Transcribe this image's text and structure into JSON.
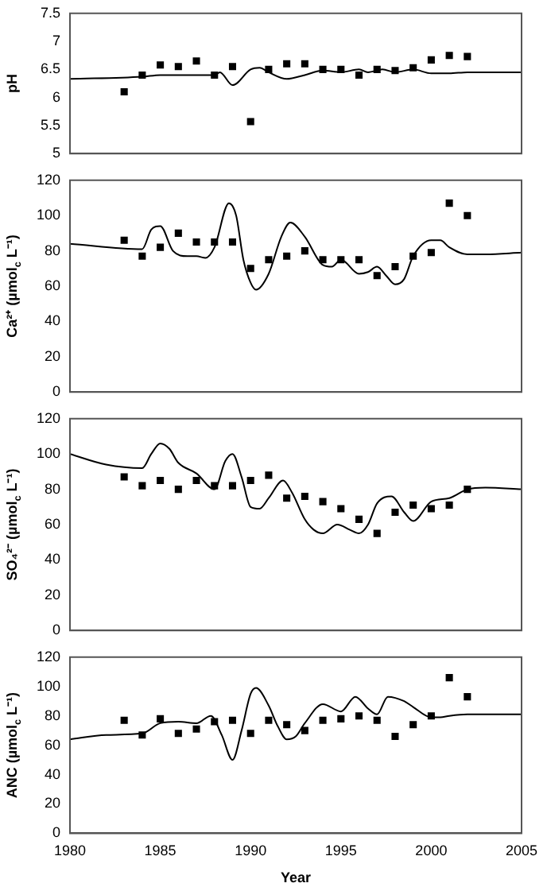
{
  "chart_data": [
    {
      "type": "scatter",
      "ylabel": "pH",
      "xlim": [
        1980,
        2005
      ],
      "xticks": [
        1980,
        1985,
        1990,
        1995,
        2000,
        2005
      ],
      "ylim": [
        5,
        7.5
      ],
      "yticks": [
        5,
        5.5,
        6,
        6.5,
        7,
        7.5
      ],
      "tick_labels": "y",
      "grid": false,
      "legend": false,
      "series": [
        {
          "type": "scatter",
          "marker": "square",
          "color": "#000000",
          "x": [
            1983,
            1984,
            1985,
            1986,
            1987,
            1988,
            1989,
            1990,
            1991,
            1992,
            1993,
            1994,
            1995,
            1996,
            1997,
            1998,
            1999,
            2000,
            2001,
            2002
          ],
          "values": [
            6.1,
            6.4,
            6.58,
            6.55,
            6.65,
            6.4,
            6.55,
            5.57,
            6.5,
            6.6,
            6.6,
            6.5,
            6.5,
            6.4,
            6.5,
            6.48,
            6.53,
            6.67,
            6.75,
            6.73
          ]
        },
        {
          "type": "line",
          "color": "#000000",
          "x": [
            1980,
            1984,
            1985,
            1988,
            1988.3,
            1989,
            1990,
            1990.5,
            1991,
            1992,
            1993,
            1994,
            1995,
            1996,
            1996.5,
            1997.3,
            1998,
            1999,
            2000,
            2001,
            2002,
            2005
          ],
          "values": [
            6.33,
            6.37,
            6.4,
            6.4,
            6.45,
            6.22,
            6.5,
            6.53,
            6.45,
            6.33,
            6.4,
            6.48,
            6.45,
            6.5,
            6.45,
            6.5,
            6.45,
            6.5,
            6.43,
            6.43,
            6.45,
            6.45
          ]
        }
      ]
    },
    {
      "type": "scatter",
      "ylabel": "Ca²⁺ (µmol$_{c}$ L⁻¹)",
      "xlim": [
        1980,
        2005
      ],
      "xticks": [
        1980,
        1985,
        1990,
        1995,
        2000,
        2005
      ],
      "ylim": [
        0,
        120
      ],
      "yticks": [
        0,
        20,
        40,
        60,
        80,
        100,
        120
      ],
      "tick_labels": "y",
      "grid": false,
      "legend": false,
      "series": [
        {
          "type": "scatter",
          "marker": "square",
          "color": "#000000",
          "x": [
            1983,
            1984,
            1985,
            1986,
            1987,
            1988,
            1989,
            1990,
            1991,
            1992,
            1993,
            1994,
            1995,
            1996,
            1997,
            1998,
            1999,
            2000,
            2001,
            2002
          ],
          "values": [
            86,
            77,
            82,
            90,
            85,
            85,
            85,
            70,
            75,
            77,
            80,
            75,
            75,
            75,
            66,
            71,
            77,
            79,
            107,
            100
          ]
        },
        {
          "type": "line",
          "color": "#000000",
          "x": [
            1980,
            1984,
            1984.5,
            1985,
            1985.7,
            1986.5,
            1987,
            1987.5,
            1988,
            1988.8,
            1989.2,
            1989.6,
            1990,
            1990.3,
            1991,
            1991.7,
            1992.2,
            1993,
            1994,
            1994.5,
            1995,
            1996,
            1996.5,
            1997,
            1997.5,
            1998,
            1998.5,
            1999,
            2000,
            2000.5,
            2001,
            2002,
            2003,
            2005
          ],
          "values": [
            84,
            81,
            92,
            94,
            80,
            77,
            77,
            76,
            82,
            107,
            100,
            75,
            62,
            58,
            67,
            88,
            96,
            88,
            72,
            71,
            75,
            67,
            68,
            71,
            66,
            61,
            64,
            77,
            86,
            86,
            82,
            78,
            78,
            79
          ]
        }
      ]
    },
    {
      "type": "scatter",
      "ylabel": "SO₄²⁻ (µmol$_{c}$ L⁻¹)",
      "xlim": [
        1980,
        2005
      ],
      "xticks": [
        1980,
        1985,
        1990,
        1995,
        2000,
        2005
      ],
      "ylim": [
        0,
        120
      ],
      "yticks": [
        0,
        20,
        40,
        60,
        80,
        100,
        120
      ],
      "tick_labels": "y",
      "grid": false,
      "legend": false,
      "series": [
        {
          "type": "scatter",
          "marker": "square",
          "color": "#000000",
          "x": [
            1983,
            1984,
            1985,
            1986,
            1987,
            1988,
            1989,
            1990,
            1991,
            1992,
            1993,
            1994,
            1995,
            1996,
            1997,
            1998,
            1999,
            2000,
            2001,
            2002
          ],
          "values": [
            87,
            82,
            85,
            80,
            85,
            82,
            82,
            85,
            88,
            75,
            76,
            73,
            69,
            63,
            55,
            67,
            71,
            69,
            71,
            80
          ]
        },
        {
          "type": "line",
          "color": "#000000",
          "x": [
            1980,
            1982,
            1984,
            1984.5,
            1985,
            1985.5,
            1986,
            1987,
            1988,
            1988.6,
            1989,
            1989.5,
            1990,
            1990.5,
            1991,
            1991.8,
            1992.3,
            1993,
            1993.5,
            1994,
            1994.8,
            1995.5,
            1996,
            1996.5,
            1997,
            1997.8,
            1998.5,
            1999,
            2000,
            2001,
            2002,
            2003,
            2005
          ],
          "values": [
            100,
            94,
            92,
            100,
            106,
            103,
            95,
            89,
            80,
            96,
            100,
            87,
            70,
            69,
            75,
            85,
            78,
            63,
            57,
            55,
            60,
            57,
            55,
            60,
            72,
            76,
            67,
            62,
            73,
            75,
            80,
            81,
            80
          ]
        }
      ]
    },
    {
      "type": "scatter",
      "ylabel": "ANC (µmol$_{c}$ L⁻¹)",
      "xlabel": "Year",
      "xlim": [
        1980,
        2005
      ],
      "xticks": [
        1980,
        1985,
        1990,
        1995,
        2000,
        2005
      ],
      "ylim": [
        0,
        120
      ],
      "yticks": [
        0,
        20,
        40,
        60,
        80,
        100,
        120
      ],
      "grid": false,
      "legend": false,
      "series": [
        {
          "type": "scatter",
          "marker": "square",
          "color": "#000000",
          "x": [
            1983,
            1984,
            1985,
            1986,
            1987,
            1988,
            1989,
            1990,
            1991,
            1992,
            1993,
            1994,
            1995,
            1996,
            1997,
            1998,
            1999,
            2000,
            2001,
            2002
          ],
          "values": [
            77,
            67,
            78,
            68,
            71,
            76,
            77,
            68,
            77,
            74,
            70,
            77,
            78,
            80,
            77,
            66,
            74,
            80,
            106,
            93
          ]
        },
        {
          "type": "line",
          "color": "#000000",
          "x": [
            1980,
            1982,
            1984,
            1985,
            1986,
            1987,
            1987.8,
            1988.4,
            1989,
            1989.5,
            1990,
            1990.3,
            1991,
            1991.5,
            1992,
            1992.5,
            1993,
            1994,
            1995,
            1995.8,
            1996.5,
            1997,
            1997.6,
            1998.5,
            1999,
            2000,
            2000.5,
            2001,
            2002,
            2005
          ],
          "values": [
            64,
            67,
            68,
            75,
            76,
            75,
            80,
            67,
            50,
            70,
            95,
            99,
            87,
            73,
            64,
            66,
            75,
            88,
            83,
            93,
            85,
            81,
            93,
            90,
            86,
            79,
            79,
            80,
            81,
            81
          ]
        }
      ]
    }
  ]
}
